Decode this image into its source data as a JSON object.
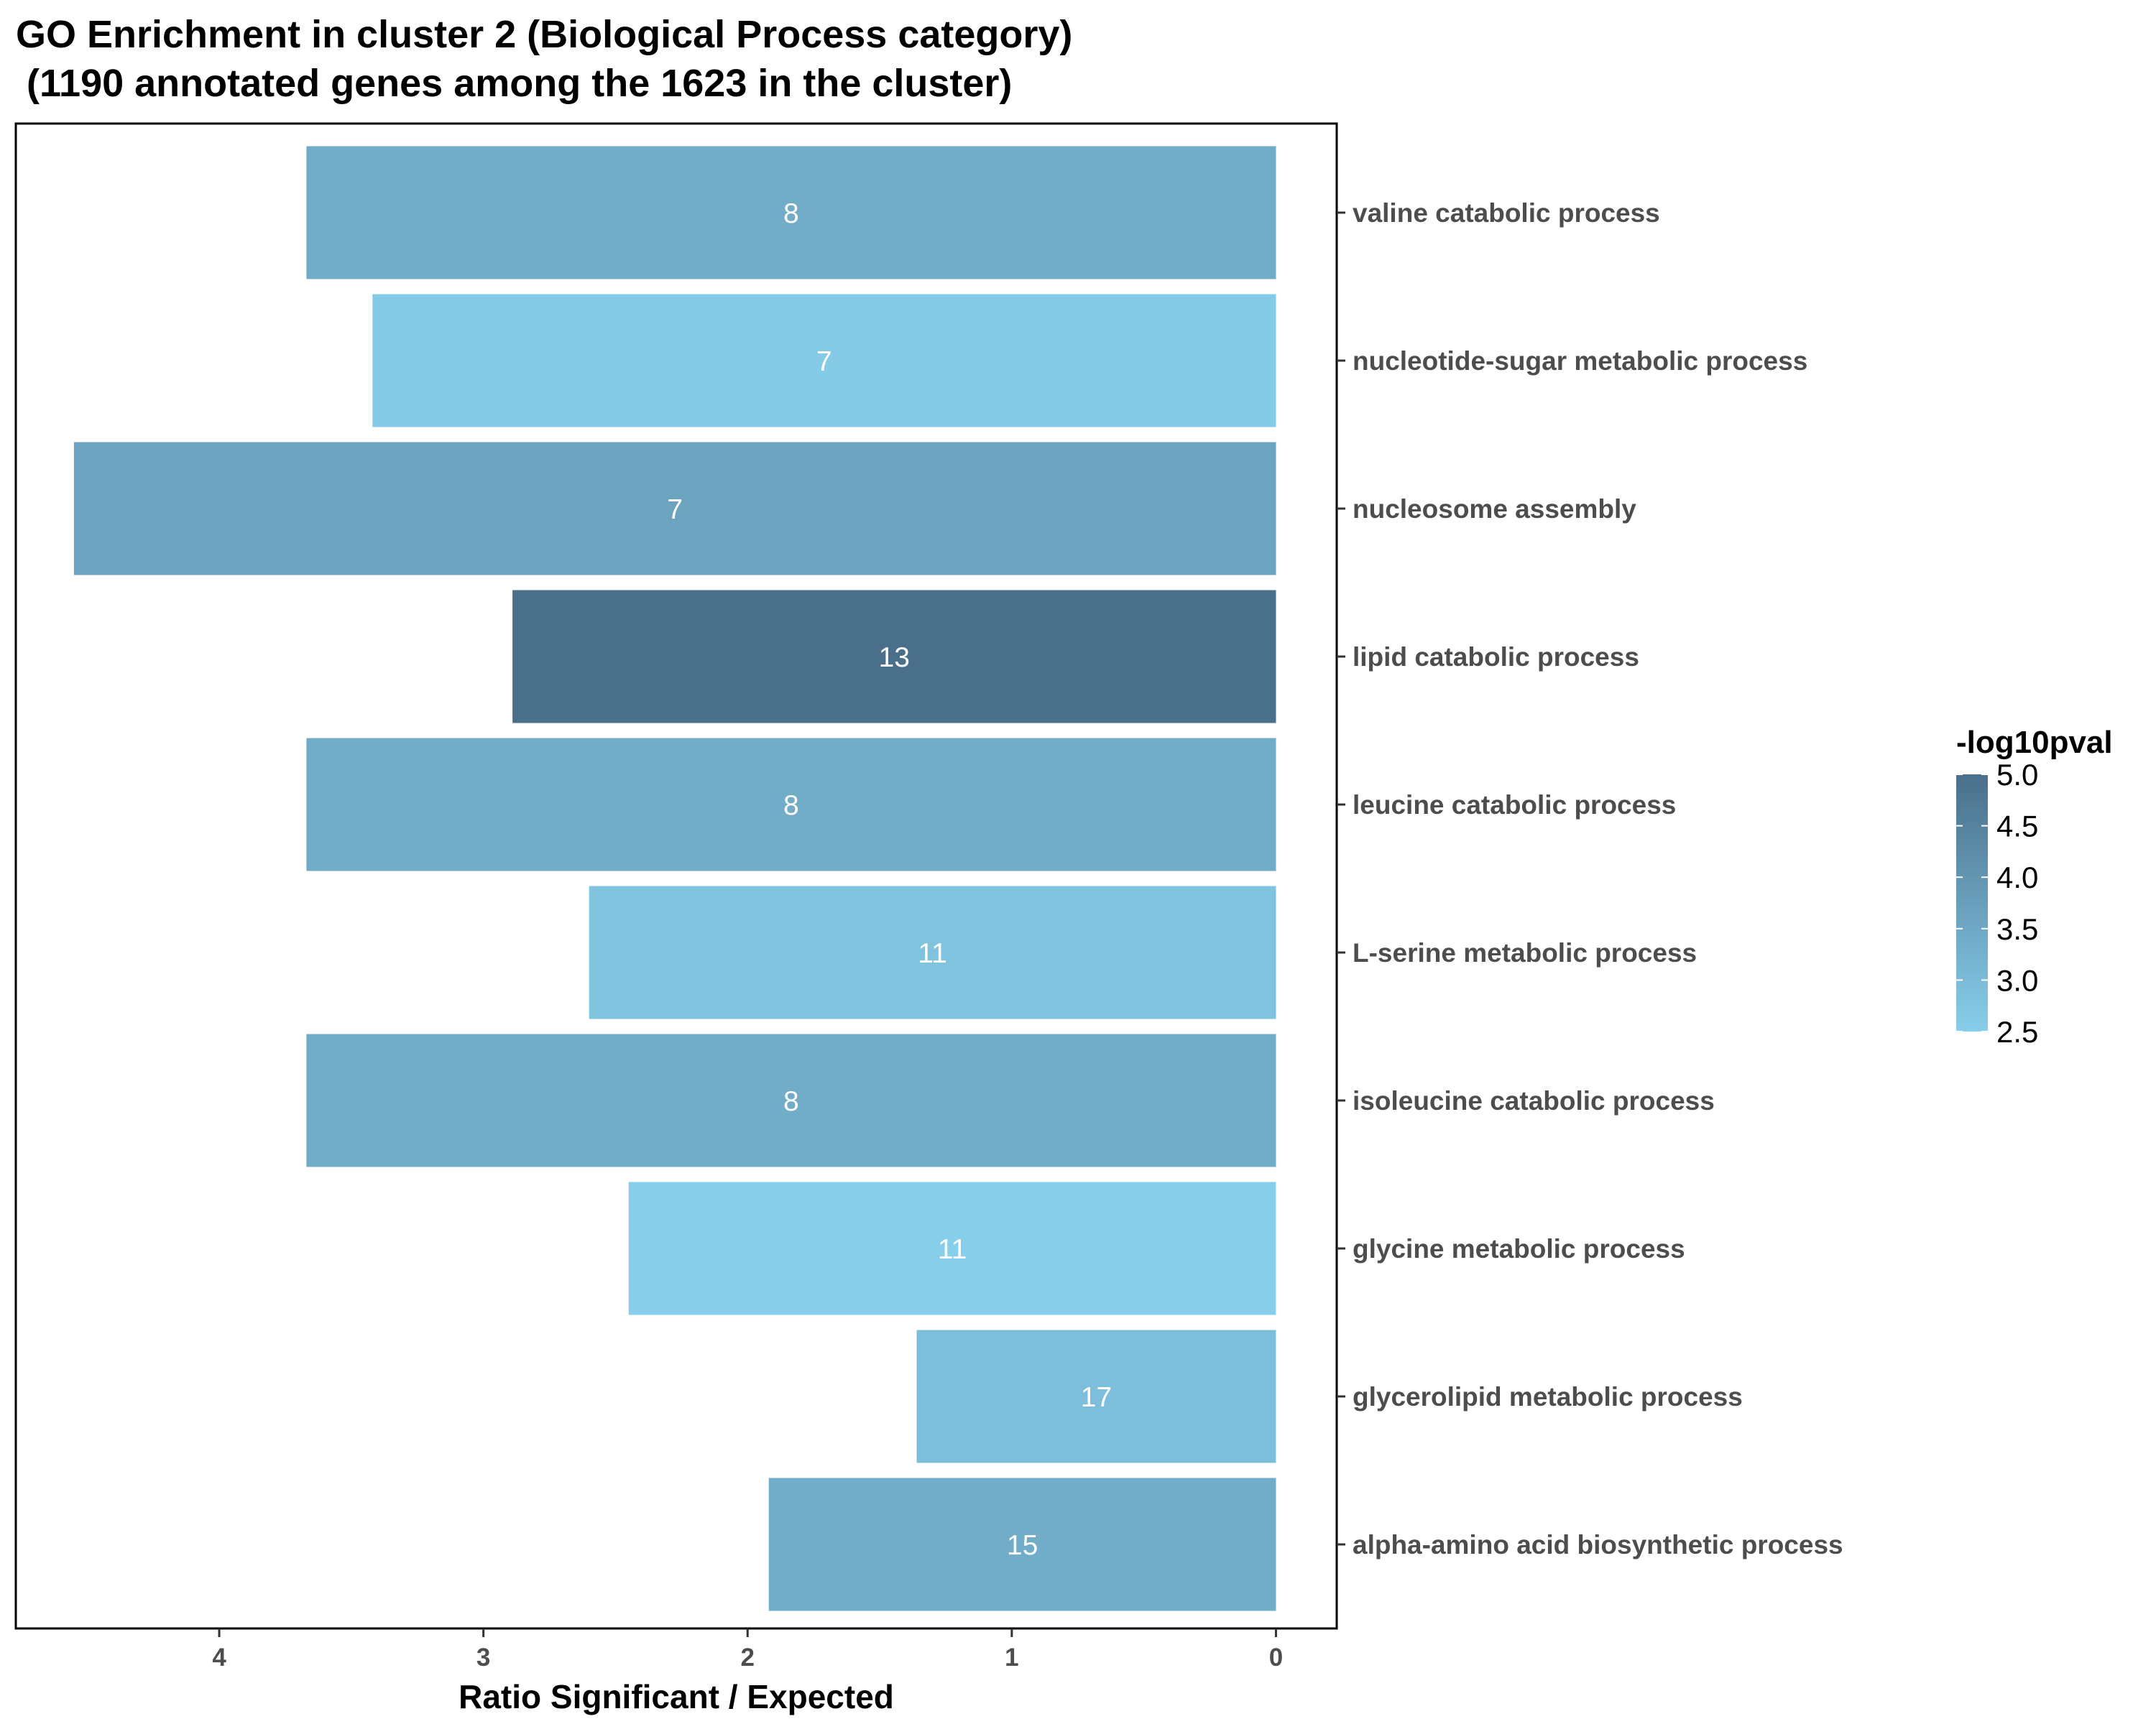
{
  "chart_data": {
    "type": "bar",
    "orientation": "horizontal",
    "title_line1": "GO Enrichment in cluster 2 (Biological Process category)",
    "title_line2": " (1190 annotated genes among the 1623 in the cluster)",
    "xlabel": "Ratio Significant / Expected",
    "ylabel": "",
    "x_reversed": true,
    "xlim": [
      4.77,
      -0.23
    ],
    "xticks": [
      "4",
      "3",
      "2",
      "1",
      "0"
    ],
    "y_axis_side": "right",
    "grid": false,
    "categories": [
      "valine catabolic process",
      "nucleotide-sugar metabolic process",
      "nucleosome assembly",
      "lipid catabolic process",
      "leucine catabolic process",
      "L-serine metabolic process",
      "isoleucine catabolic process",
      "glycine metabolic process",
      "glycerolipid metabolic process",
      "alpha-amino acid biosynthetic process"
    ],
    "values": [
      3.67,
      3.42,
      4.55,
      2.89,
      3.67,
      2.6,
      3.67,
      2.45,
      1.36,
      1.92
    ],
    "bar_labels": [
      "8",
      "7",
      "7",
      "13",
      "8",
      "11",
      "8",
      "11",
      "17",
      "15"
    ],
    "color_values": [
      3.4,
      2.6,
      3.6,
      5.0,
      3.4,
      2.8,
      3.4,
      2.5,
      2.9,
      3.4
    ],
    "legend": {
      "title": "-log10pval",
      "position": "right",
      "ticks": [
        "5.0",
        "4.5",
        "4.0",
        "3.5",
        "3.0",
        "2.5"
      ],
      "range": [
        2.5,
        5.0
      ],
      "color_low": "#87ceeb",
      "color_high": "#4a6f8a"
    }
  }
}
